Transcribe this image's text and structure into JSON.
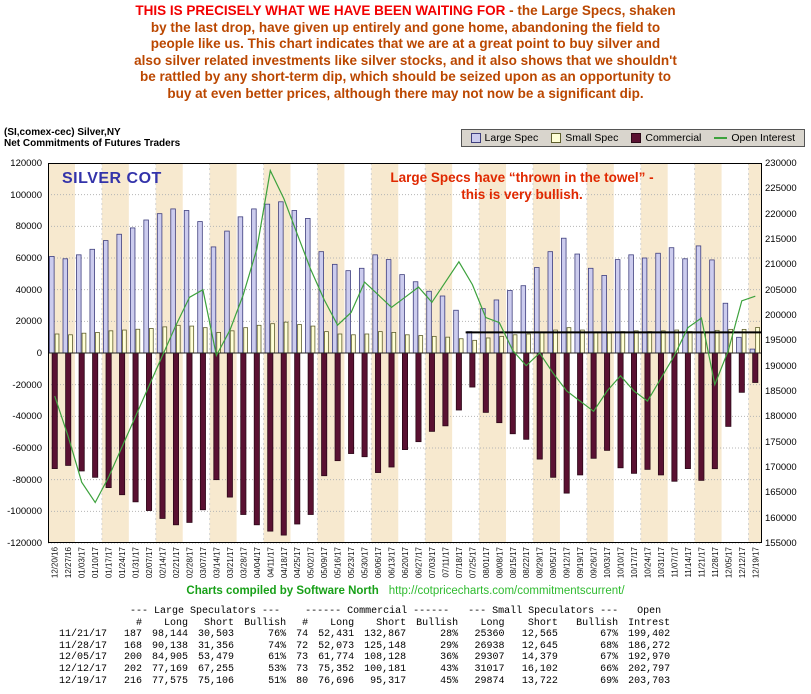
{
  "top_note": {
    "lead": "THIS IS PRECISELY WHAT WE HAVE BEEN WAITING FOR",
    "line1_rest": " - the Large Specs, shaken",
    "lines": [
      "by the last drop, have given up entirely and gone home, abandoning the field to",
      "people like us. This chart indicates that we are at a great point to buy silver and",
      "also silver related investments like silver stocks, and it also shows that we shouldn't",
      "be rattled by any short-term dip, which should be seized upon as an opportunity to",
      "buy at even better prices, although there may not now be a significant dip."
    ]
  },
  "chart_data": {
    "type": "bar",
    "title": "(SI,comex-cec) Silver,NY",
    "subtitle": "Net Commitments of Futures Traders",
    "watermark": "SILVER COT",
    "annotations": [
      "Large Specs have “thrown in the towel” -",
      "this is very bullish."
    ],
    "legend_position": "top-right",
    "grid": true,
    "legend": [
      {
        "label": "Large Spec",
        "type": "box",
        "color": "#ccccee",
        "border": "#3f3f7e",
        "icon": "large-spec-swatch-icon"
      },
      {
        "label": "Small Spec",
        "type": "box",
        "color": "#ffffd6",
        "border": "#5f5f2d",
        "icon": "small-spec-swatch-icon"
      },
      {
        "label": "Commercial",
        "type": "box",
        "color": "#5a1132",
        "border": "#2c0818",
        "icon": "commercial-swatch-icon"
      },
      {
        "label": "Open Interest",
        "type": "line",
        "color": "#3da23d",
        "icon": "open-interest-line-icon"
      }
    ],
    "colors": {
      "large_spec": "#ccccee",
      "large_spec_border": "#3f3f7e",
      "small_spec": "#ffffd6",
      "small_spec_border": "#5f5f2d",
      "commercial": "#5a1132",
      "commercial_border": "#2c0818",
      "open_interest": "#3da23d",
      "stripe": "#f7e9cf",
      "highlight_line": "#000000",
      "watermark": "#3333aa",
      "annotation": "#e02800",
      "note_lead": "#f20000",
      "note_body": "#bb4700",
      "credit": "#18a018",
      "url": "#2fbb2f"
    },
    "x": [
      "12/20/16",
      "12/27/16",
      "01/03/17",
      "01/10/17",
      "01/17/17",
      "01/24/17",
      "01/31/17",
      "02/07/17",
      "02/14/17",
      "02/21/17",
      "02/28/17",
      "03/07/17",
      "03/14/17",
      "03/21/17",
      "03/28/17",
      "04/04/17",
      "04/11/17",
      "04/18/17",
      "04/25/17",
      "05/02/17",
      "05/09/17",
      "05/16/17",
      "05/23/17",
      "05/30/17",
      "06/06/17",
      "06/13/17",
      "06/20/17",
      "06/27/17",
      "07/03/17",
      "07/11/17",
      "07/18/17",
      "07/25/17",
      "08/01/17",
      "08/08/17",
      "08/15/17",
      "08/22/17",
      "08/29/17",
      "09/05/17",
      "09/12/17",
      "09/19/17",
      "09/26/17",
      "10/03/17",
      "10/10/17",
      "10/17/17",
      "10/24/17",
      "10/31/17",
      "11/07/17",
      "11/14/17",
      "11/21/17",
      "11/28/17",
      "12/05/17",
      "12/12/17",
      "12/19/17"
    ],
    "series": [
      {
        "key": "large_spec",
        "name": "Large Spec",
        "axis": "left",
        "style": "bar",
        "values": [
          61000,
          59500,
          62000,
          65500,
          71000,
          75000,
          79000,
          84000,
          88000,
          91000,
          90000,
          83000,
          67000,
          77000,
          86000,
          91000,
          94000,
          95500,
          90000,
          85000,
          64000,
          56000,
          52000,
          53500,
          62000,
          59000,
          49500,
          45000,
          39000,
          36000,
          27000,
          13500,
          28000,
          33500,
          39500,
          42500,
          54000,
          64000,
          72500,
          62500,
          53500,
          49000,
          59000,
          62000,
          60000,
          63000,
          66500,
          59500,
          67641,
          58782,
          31426,
          9914,
          2469
        ]
      },
      {
        "key": "small_spec",
        "name": "Small Spec",
        "axis": "left",
        "style": "bar",
        "values": [
          12000,
          11500,
          12500,
          13000,
          14000,
          14500,
          15000,
          15500,
          16500,
          17500,
          17000,
          16000,
          13000,
          14000,
          16000,
          17500,
          18500,
          19500,
          18000,
          17000,
          13500,
          12000,
          11500,
          12000,
          13500,
          13000,
          11500,
          11000,
          10500,
          10000,
          9000,
          8000,
          9500,
          10500,
          11500,
          12000,
          13000,
          14500,
          16000,
          14500,
          13000,
          12500,
          13500,
          14000,
          13500,
          14000,
          14500,
          13500,
          12795,
          14293,
          14928,
          14915,
          16152
        ]
      },
      {
        "key": "commercial",
        "name": "Commercial",
        "axis": "left",
        "style": "bar",
        "values": [
          -73000,
          -71000,
          -74500,
          -78500,
          -85000,
          -89500,
          -94000,
          -99500,
          -104500,
          -108500,
          -107000,
          -99000,
          -80000,
          -91000,
          -102000,
          -108500,
          -112500,
          -115000,
          -108000,
          -102000,
          -77500,
          -68000,
          -63500,
          -65500,
          -75500,
          -72000,
          -61000,
          -56000,
          -49500,
          -46000,
          -36000,
          -21500,
          -37500,
          -44000,
          -51000,
          -54500,
          -67000,
          -78500,
          -88500,
          -77000,
          -66500,
          -61500,
          -72500,
          -76000,
          -73500,
          -77000,
          -81000,
          -73000,
          -80436,
          -73075,
          -46354,
          -24829,
          -18621
        ]
      },
      {
        "key": "open_interest",
        "name": "Open Interest",
        "axis": "right",
        "style": "line",
        "values": [
          184000,
          176000,
          167000,
          163000,
          168000,
          174000,
          180000,
          186000,
          192000,
          198000,
          203500,
          205000,
          192000,
          197000,
          204000,
          213000,
          228500,
          223000,
          216000,
          209000,
          203000,
          198000,
          200500,
          206500,
          204000,
          201500,
          203500,
          205500,
          202500,
          206500,
          210500,
          206000,
          199500,
          198500,
          193000,
          190000,
          192500,
          188500,
          185000,
          183000,
          181000,
          185000,
          188000,
          185000,
          183000,
          187500,
          192000,
          197500,
          199402,
          186272,
          192970,
          202797,
          203703
        ]
      }
    ],
    "left_axis": {
      "max": 120000,
      "min": -120000,
      "step": 20000,
      "ticks": [
        120000,
        100000,
        80000,
        60000,
        40000,
        20000,
        0,
        -20000,
        -40000,
        -60000,
        -80000,
        -100000,
        -120000
      ]
    },
    "right_axis": {
      "max": 230000,
      "min": 155000,
      "step": 5000,
      "ticks": [
        230000,
        225000,
        220000,
        215000,
        210000,
        205000,
        200000,
        195000,
        190000,
        185000,
        180000,
        175000,
        170000,
        165000,
        160000,
        155000
      ]
    },
    "horizontal_line": {
      "value": 13000,
      "from_date": "07/25/17",
      "from_index": 31
    }
  },
  "footer": {
    "credit": "Charts compiled by Software North",
    "url": "http://cotpricecharts.com/commitmentscurrent/"
  },
  "table": {
    "group_headers": [
      "--- Large Speculators ---",
      "------ Commercial ------",
      "--- Small Speculators ---",
      "Open"
    ],
    "columns": [
      "",
      "#",
      "Long",
      "Short",
      "Bullish",
      "#",
      "Long",
      "Short",
      "Bullish",
      "Long",
      "Short",
      "Bullish",
      "Intrest"
    ],
    "rows": [
      [
        "11/21/17",
        "187",
        "98,144",
        "30,503",
        "76%",
        "74",
        "52,431",
        "132,867",
        "28%",
        "25360",
        "12,565",
        "67%",
        "199,402"
      ],
      [
        "11/28/17",
        "168",
        "90,138",
        "31,356",
        "74%",
        "72",
        "52,073",
        "125,148",
        "29%",
        "26938",
        "12,645",
        "68%",
        "186,272"
      ],
      [
        "12/05/17",
        "200",
        "84,905",
        "53,479",
        "61%",
        "73",
        "61,774",
        "108,128",
        "36%",
        "29307",
        "14,379",
        "67%",
        "192,970"
      ],
      [
        "12/12/17",
        "202",
        "77,169",
        "67,255",
        "53%",
        "73",
        "75,352",
        "100,181",
        "43%",
        "31017",
        "16,102",
        "66%",
        "202,797"
      ],
      [
        "12/19/17",
        "216",
        "77,575",
        "75,106",
        "51%",
        "80",
        "76,696",
        "95,317",
        "45%",
        "29874",
        "13,722",
        "69%",
        "203,703"
      ]
    ]
  }
}
